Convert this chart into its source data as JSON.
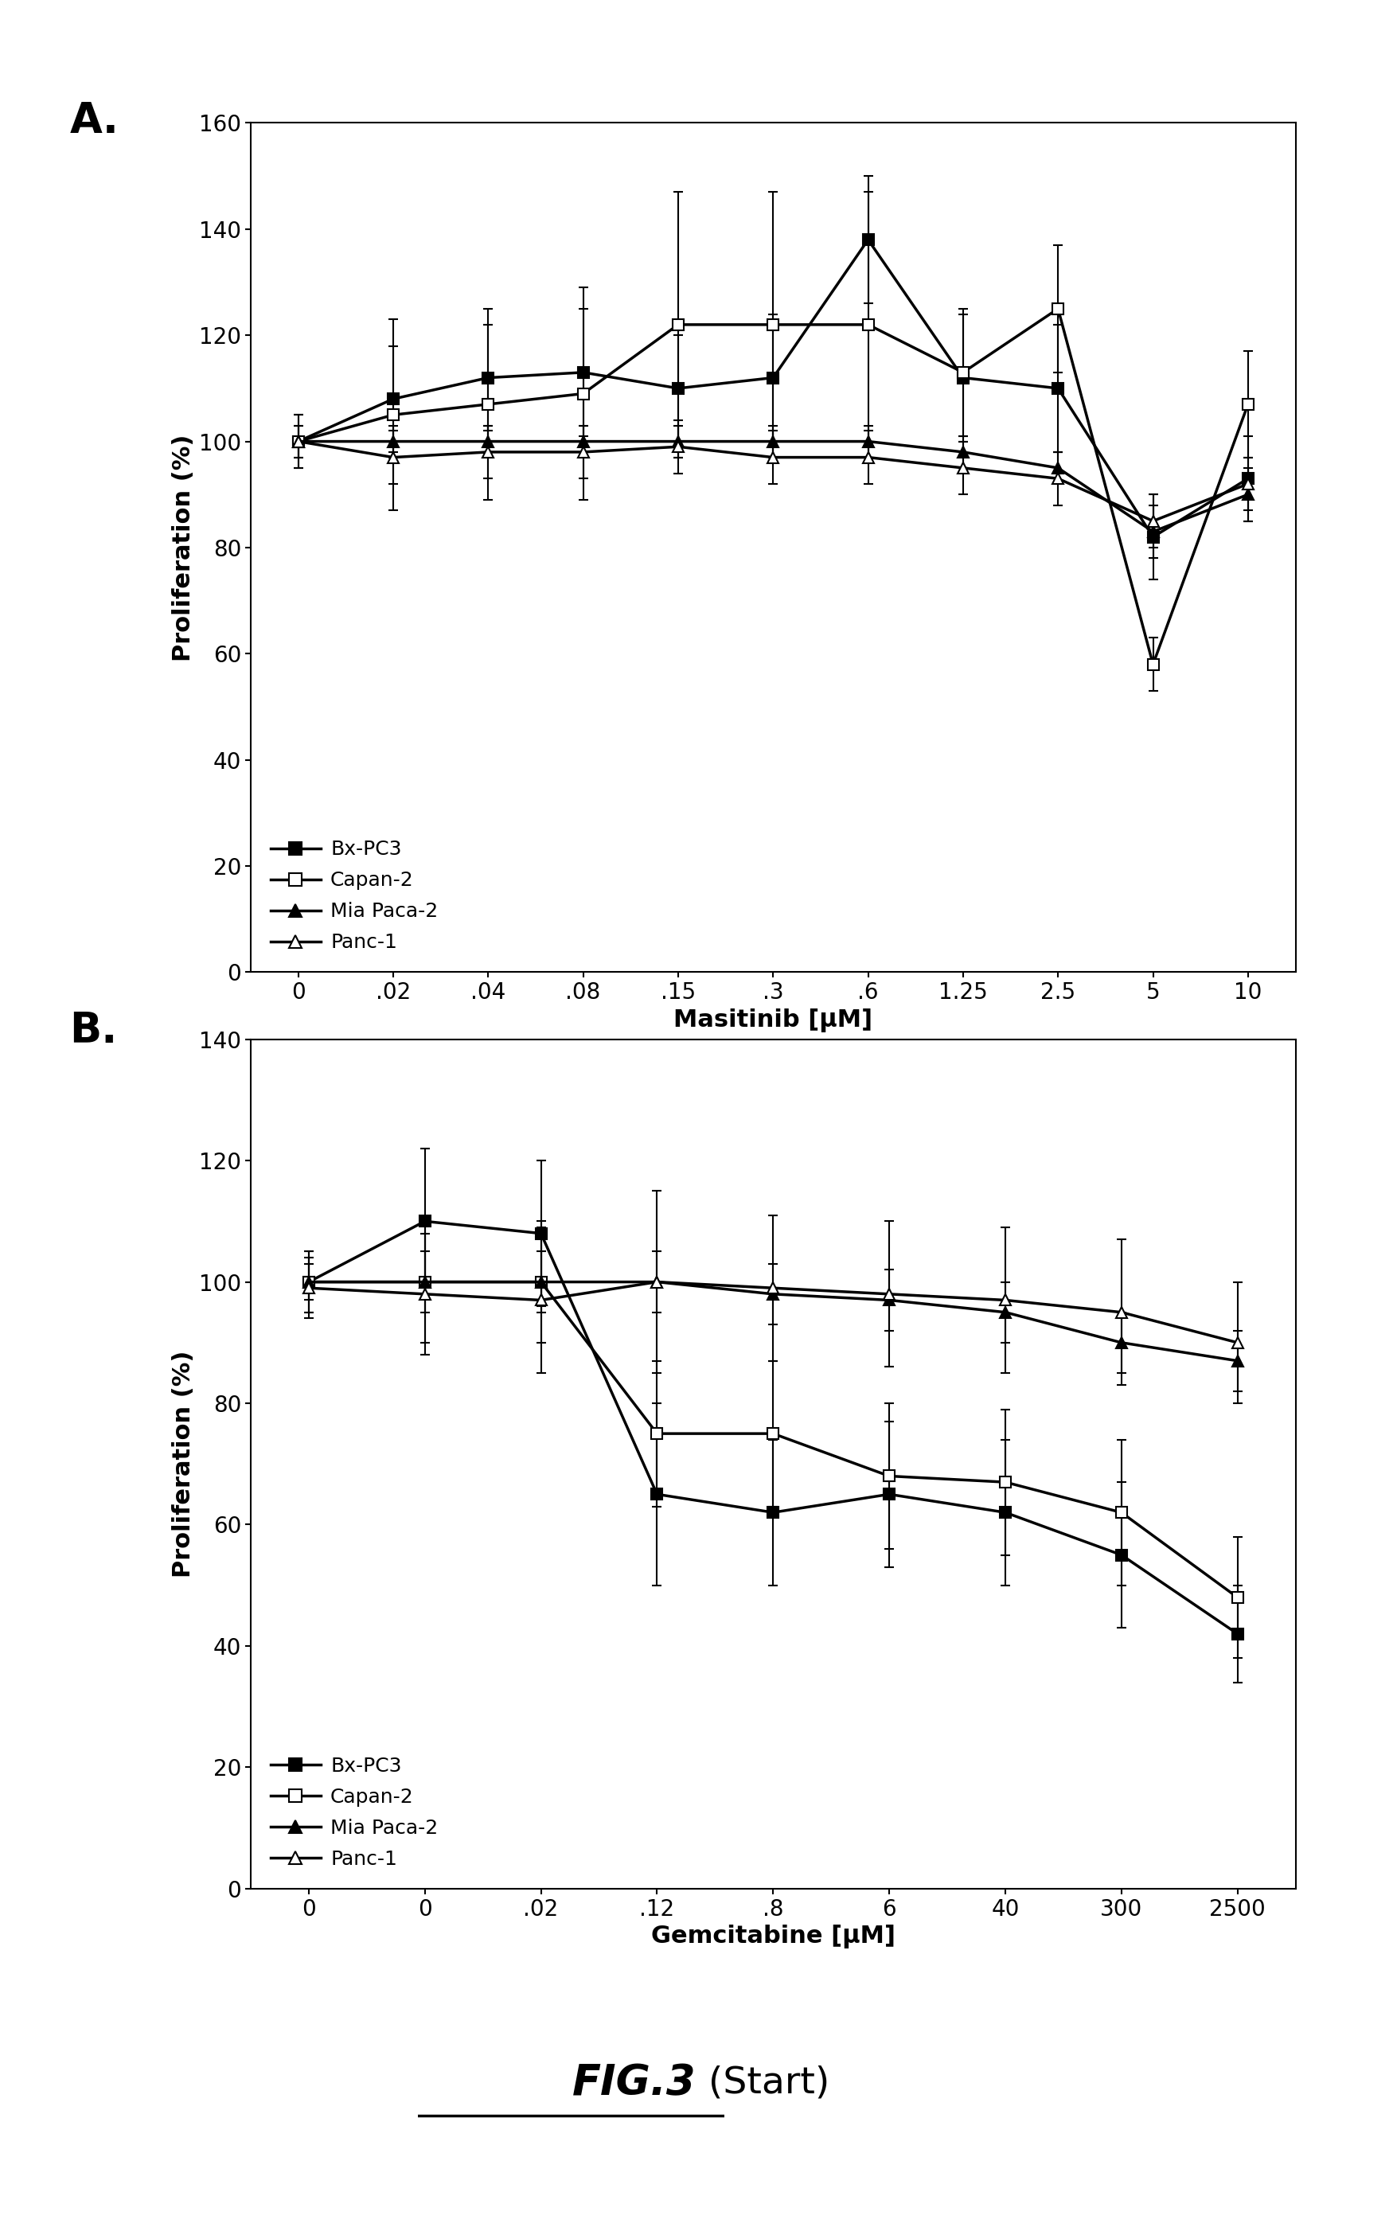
{
  "panel_A": {
    "xlabel": "Masitinib [μM]",
    "ylabel": "Proliferation (%)",
    "ylim": [
      0,
      160
    ],
    "yticks": [
      0,
      20,
      40,
      60,
      80,
      100,
      120,
      140,
      160
    ],
    "xtick_labels": [
      "0",
      ".02",
      ".04",
      ".08",
      ".15",
      ".3",
      ".6",
      "1.25",
      "2.5",
      "5",
      "10"
    ],
    "series": {
      "BxPC3": {
        "y": [
          100,
          108,
          112,
          113,
          110,
          112,
          138,
          112,
          110,
          82,
          93
        ],
        "yerr": [
          5,
          10,
          10,
          12,
          10,
          12,
          12,
          12,
          12,
          8,
          8
        ],
        "marker": "s",
        "filled": true,
        "label": "Bx-PC3"
      },
      "Capan2": {
        "y": [
          100,
          105,
          107,
          109,
          122,
          122,
          122,
          113,
          125,
          58,
          107
        ],
        "yerr": [
          5,
          18,
          18,
          20,
          25,
          25,
          25,
          12,
          12,
          5,
          10
        ],
        "marker": "s",
        "filled": false,
        "label": "Capan-2"
      },
      "MiaPaca2": {
        "y": [
          100,
          100,
          100,
          100,
          100,
          100,
          100,
          98,
          95,
          83,
          90
        ],
        "yerr": [
          3,
          3,
          3,
          3,
          3,
          3,
          3,
          3,
          3,
          5,
          5
        ],
        "marker": "^",
        "filled": true,
        "label": "Mia Paca-2"
      },
      "Panc1": {
        "y": [
          100,
          97,
          98,
          98,
          99,
          97,
          97,
          95,
          93,
          85,
          92
        ],
        "yerr": [
          3,
          5,
          5,
          5,
          5,
          5,
          5,
          5,
          5,
          5,
          5
        ],
        "marker": "^",
        "filled": false,
        "label": "Panc-1"
      }
    }
  },
  "panel_B": {
    "xlabel": "Gemcitabine [μM]",
    "ylabel": "Proliferation (%)",
    "ylim": [
      0,
      140
    ],
    "yticks": [
      0,
      20,
      40,
      60,
      80,
      100,
      120,
      140
    ],
    "xtick_labels": [
      "0",
      "0",
      ".02",
      ".12",
      ".8",
      "6",
      "40",
      "300",
      "2500"
    ],
    "series": {
      "BxPC3": {
        "y": [
          100,
          110,
          108,
          65,
          62,
          65,
          62,
          55,
          42
        ],
        "yerr": [
          5,
          12,
          12,
          15,
          12,
          12,
          12,
          12,
          8
        ],
        "marker": "s",
        "filled": true,
        "label": "Bx-PC3"
      },
      "Capan2": {
        "y": [
          100,
          100,
          100,
          75,
          75,
          68,
          67,
          62,
          48
        ],
        "yerr": [
          5,
          10,
          10,
          12,
          12,
          12,
          12,
          12,
          10
        ],
        "marker": "s",
        "filled": false,
        "label": "Capan-2"
      },
      "MiaPaca2": {
        "y": [
          100,
          100,
          100,
          100,
          98,
          97,
          95,
          90,
          87
        ],
        "yerr": [
          3,
          5,
          5,
          5,
          5,
          5,
          5,
          5,
          5
        ],
        "marker": "^",
        "filled": true,
        "label": "Mia Paca-2"
      },
      "Panc1": {
        "y": [
          99,
          98,
          97,
          100,
          99,
          98,
          97,
          95,
          90
        ],
        "yerr": [
          5,
          10,
          12,
          15,
          12,
          12,
          12,
          12,
          10
        ],
        "marker": "^",
        "filled": false,
        "label": "Panc-1"
      }
    }
  },
  "figure_label_italic": "FIG.3",
  "figure_label_normal": " (Start)",
  "background_color": "#ffffff",
  "label_A": "A.",
  "label_B": "B."
}
